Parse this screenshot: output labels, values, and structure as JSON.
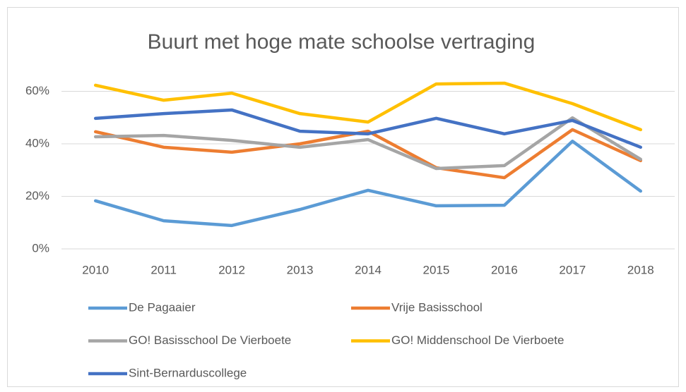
{
  "chart_data": {
    "type": "line",
    "title": "Buurt met hoge mate schoolse vertraging",
    "categories": [
      "2010",
      "2011",
      "2012",
      "2013",
      "2014",
      "2015",
      "2016",
      "2017",
      "2018"
    ],
    "series": [
      {
        "name": "De Pagaaier",
        "color": "#5b9bd5",
        "values": [
          18.3,
          10.7,
          8.9,
          15,
          22.3,
          16.4,
          16.6,
          41,
          22
        ]
      },
      {
        "name": "Vrije Basisschool",
        "color": "#ed7d31",
        "values": [
          44.6,
          38.7,
          36.8,
          40,
          44.8,
          30.9,
          27.1,
          45.4,
          33.6
        ]
      },
      {
        "name": "GO! Basisschool De Vierboete",
        "color": "#a5a5a5",
        "values": [
          42.7,
          43.2,
          41.3,
          38.7,
          41.6,
          30.6,
          31.7,
          49.9,
          34.1
        ]
      },
      {
        "name": "GO! Middenschool De Vierboete",
        "color": "#ffc000",
        "values": [
          62.3,
          56.6,
          59.3,
          51.5,
          48.3,
          62.8,
          63.1,
          55.3,
          45.4
        ]
      },
      {
        "name": "Sint-Bernarduscollege",
        "color": "#4472c4",
        "values": [
          49.7,
          51.5,
          52.9,
          44.8,
          43.8,
          49.7,
          43.8,
          48.9,
          38.7
        ]
      }
    ],
    "ylim": [
      0,
      70
    ],
    "yticks": [
      {
        "value": 0,
        "label": "0%"
      },
      {
        "value": 20,
        "label": "20%"
      },
      {
        "value": 40,
        "label": "40%"
      },
      {
        "value": 60,
        "label": "60%"
      }
    ],
    "grid": true,
    "legend": "bottom"
  }
}
